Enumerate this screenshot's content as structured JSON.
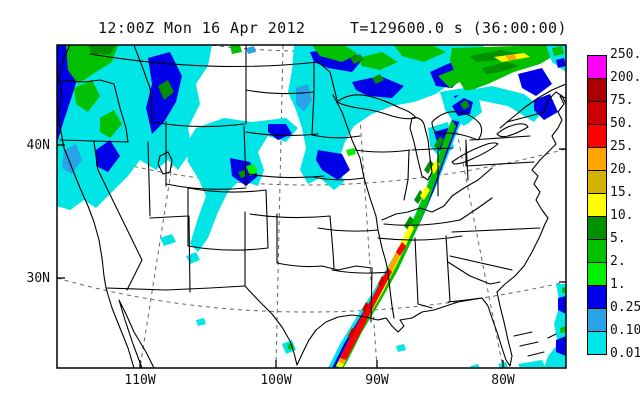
{
  "title": {
    "datetime": "12:00Z Mon 16 Apr 2012",
    "forecast": "T=129600.0 s (36:00:00)"
  },
  "axes": {
    "lat_labels": [
      {
        "text": "40N"
      },
      {
        "text": "30N"
      }
    ],
    "lon_labels": [
      {
        "text": "110W"
      },
      {
        "text": "100W"
      },
      {
        "text": "90W"
      },
      {
        "text": "80W"
      }
    ]
  },
  "colorbar": {
    "labels": [
      "250.",
      "200.",
      "75.",
      "50.",
      "25.",
      "20.",
      "15.",
      "10.",
      "5.",
      "2.",
      "1.",
      "0.25",
      "0.10",
      "0.01"
    ],
    "colors": [
      "#FF00FF",
      "#AA0000",
      "#CC0000",
      "#FF0000",
      "#FFA500",
      "#D6B200",
      "#FFFF00",
      "#009000",
      "#00C000",
      "#00F000",
      "#0000E8",
      "#29A3E8",
      "#00E6E6"
    ]
  },
  "palette": {
    "cyan": "#00E6E6",
    "skyblue": "#29A3E8",
    "blue": "#0000E8",
    "green_bright": "#00F000",
    "green": "#00C000",
    "green_dark": "#009000",
    "yellow": "#FFFF00",
    "gold": "#D6B200",
    "orange": "#FFA500",
    "red": "#FF0000",
    "red_dark": "#CC0000",
    "magenta": "#FF00FF",
    "map_line": "#000000",
    "graticule": "#666666"
  }
}
